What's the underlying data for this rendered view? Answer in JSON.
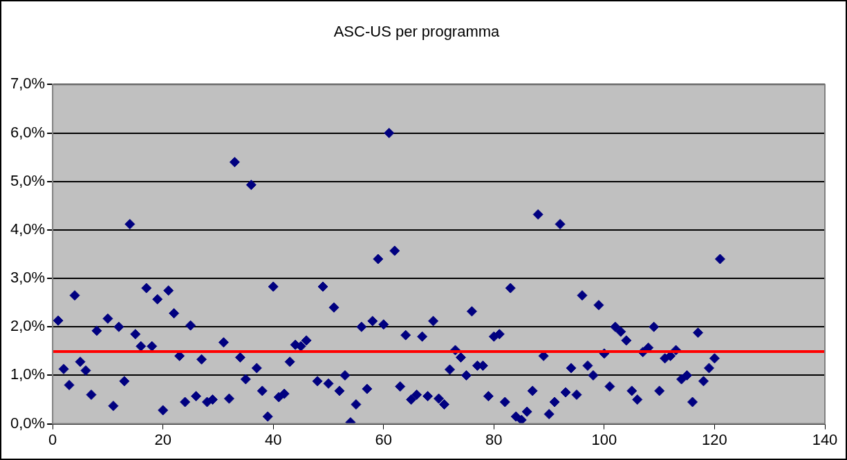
{
  "chart_data": {
    "type": "scatter",
    "title": "ASC-US per programma",
    "marker": "diamond",
    "grid": "y",
    "legend": false,
    "xlim": [
      0,
      140
    ],
    "xticks": [
      0,
      20,
      40,
      60,
      80,
      100,
      120,
      140
    ],
    "ylim": [
      0,
      7
    ],
    "yticks": [
      {
        "value": 0,
        "label": "0,0%"
      },
      {
        "value": 1,
        "label": "1,0%"
      },
      {
        "value": 2,
        "label": "2,0%"
      },
      {
        "value": 3,
        "label": "3,0%"
      },
      {
        "value": 4,
        "label": "4,0%"
      },
      {
        "value": 5,
        "label": "5,0%"
      },
      {
        "value": 6,
        "label": "6,0%"
      },
      {
        "value": 7,
        "label": "7,0%"
      }
    ],
    "ref_lines": [
      {
        "axis": "y",
        "value": 1.49,
        "color": "#ff0000"
      }
    ],
    "series": [
      {
        "color": "#000080",
        "x": [
          1,
          2,
          3,
          4,
          5,
          6,
          7,
          8,
          10,
          11,
          12,
          13,
          14,
          15,
          16,
          17,
          18,
          19,
          20,
          21,
          22,
          23,
          24,
          25,
          26,
          27,
          28,
          29,
          31,
          32,
          33,
          34,
          35,
          36,
          37,
          38,
          39,
          40,
          41,
          42,
          43,
          44,
          45,
          46,
          48,
          49,
          50,
          51,
          52,
          53,
          54,
          55,
          56,
          57,
          58,
          59,
          60,
          61,
          62,
          63,
          64,
          65,
          66,
          67,
          68,
          69,
          70,
          71,
          72,
          73,
          74,
          75,
          76,
          77,
          78,
          79,
          80,
          81,
          82,
          83,
          84,
          85,
          86,
          87,
          88,
          89,
          90,
          91,
          92,
          93,
          94,
          95,
          96,
          97,
          98,
          99,
          100,
          101,
          102,
          103,
          104,
          105,
          106,
          107,
          108,
          109,
          110,
          111,
          112,
          113,
          114,
          115,
          116,
          117,
          118,
          119,
          120,
          121
        ],
        "values": [
          2.13,
          1.13,
          0.8,
          2.65,
          1.28,
          1.1,
          0.6,
          1.92,
          2.17,
          0.37,
          2.0,
          0.88,
          4.12,
          1.85,
          1.6,
          2.8,
          1.6,
          2.57,
          0.28,
          2.75,
          2.28,
          1.4,
          0.45,
          2.03,
          0.57,
          1.33,
          0.45,
          0.5,
          1.68,
          0.52,
          5.4,
          1.37,
          0.92,
          4.93,
          1.15,
          0.68,
          0.15,
          2.83,
          0.55,
          0.62,
          1.28,
          1.63,
          1.6,
          1.72,
          0.88,
          2.83,
          0.83,
          2.4,
          0.68,
          1.0,
          0.03,
          0.4,
          2.0,
          0.72,
          2.12,
          3.4,
          2.05,
          6.0,
          3.57,
          0.77,
          1.83,
          0.5,
          0.6,
          1.8,
          0.57,
          2.12,
          0.52,
          0.4,
          1.12,
          1.52,
          1.37,
          1.0,
          2.32,
          1.2,
          1.2,
          0.57,
          1.8,
          1.85,
          0.45,
          2.8,
          0.15,
          0.08,
          0.25,
          0.68,
          4.32,
          1.4,
          0.2,
          0.45,
          4.12,
          0.65,
          1.15,
          0.6,
          2.65,
          1.2,
          1.0,
          2.45,
          1.45,
          0.77,
          2.0,
          1.9,
          1.72,
          0.68,
          0.5,
          1.48,
          1.57,
          2.0,
          0.68,
          1.35,
          1.4,
          1.52,
          0.92,
          1.0,
          0.45,
          1.88,
          0.88,
          1.15,
          1.35,
          3.4
        ]
      }
    ]
  }
}
